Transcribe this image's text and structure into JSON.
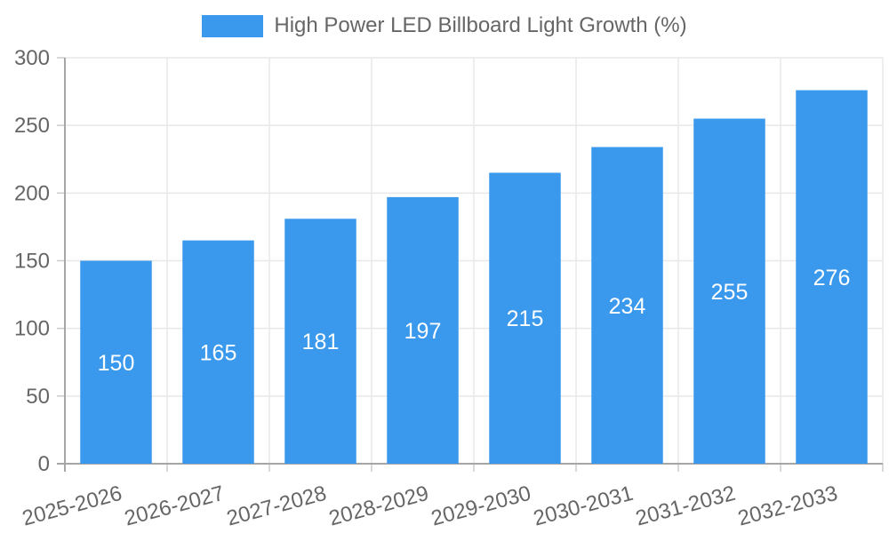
{
  "legend": {
    "series_label": "High Power LED Billboard Light Growth (%)"
  },
  "chart_data": {
    "type": "bar",
    "title": "High Power LED Billboard Light Growth (%)",
    "categories": [
      "2025-2026",
      "2026-2027",
      "2027-2028",
      "2028-2029",
      "2029-2030",
      "2030-2031",
      "2031-2032",
      "2032-2033"
    ],
    "values": [
      150,
      165,
      181,
      197,
      215,
      234,
      255,
      276
    ],
    "xlabel": "",
    "ylabel": "",
    "ylim": [
      0,
      300
    ],
    "yticks": [
      0,
      50,
      100,
      150,
      200,
      250,
      300
    ],
    "grid": true,
    "legend_position": "top-center",
    "value_label_position": "inside-center",
    "colors": {
      "bar": "#3A99EC",
      "grid": "#E8E8E8",
      "axis": "#A6A6A6",
      "tick": "#CCCCCC",
      "text": "#666666",
      "bar_label": "#FFFFFF"
    }
  }
}
